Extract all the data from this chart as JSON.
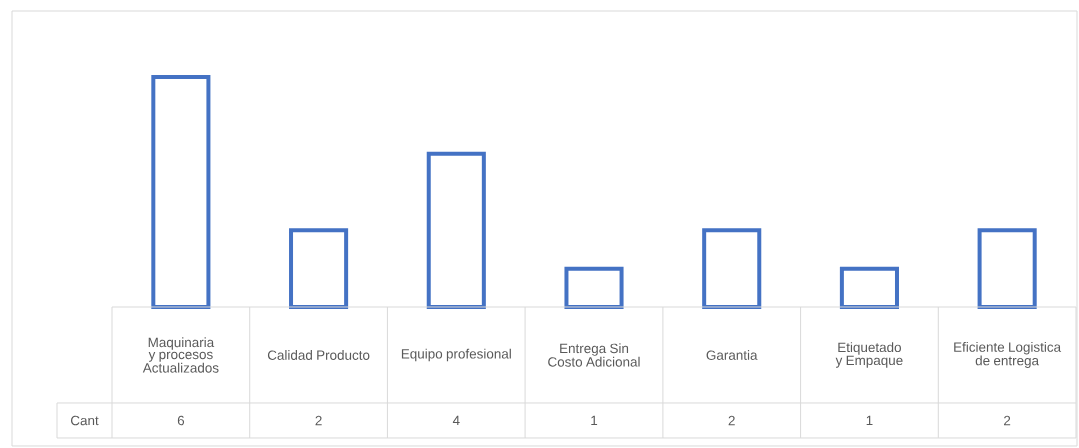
{
  "chart_data": {
    "type": "bar",
    "categories": [
      "Maquinaria y procesos Actualizados",
      "Calidad Producto",
      "Equipo profesional",
      "Entrega Sin Costo Adicional",
      "Garantia",
      "Etiquetado y Empaque",
      "Eficiente Logistica de entrega"
    ],
    "series": [
      {
        "name": "Cant",
        "color": "#4472c4",
        "values": [
          6,
          2,
          4,
          1,
          2,
          1,
          2
        ]
      }
    ],
    "data_labels": true
  }
}
